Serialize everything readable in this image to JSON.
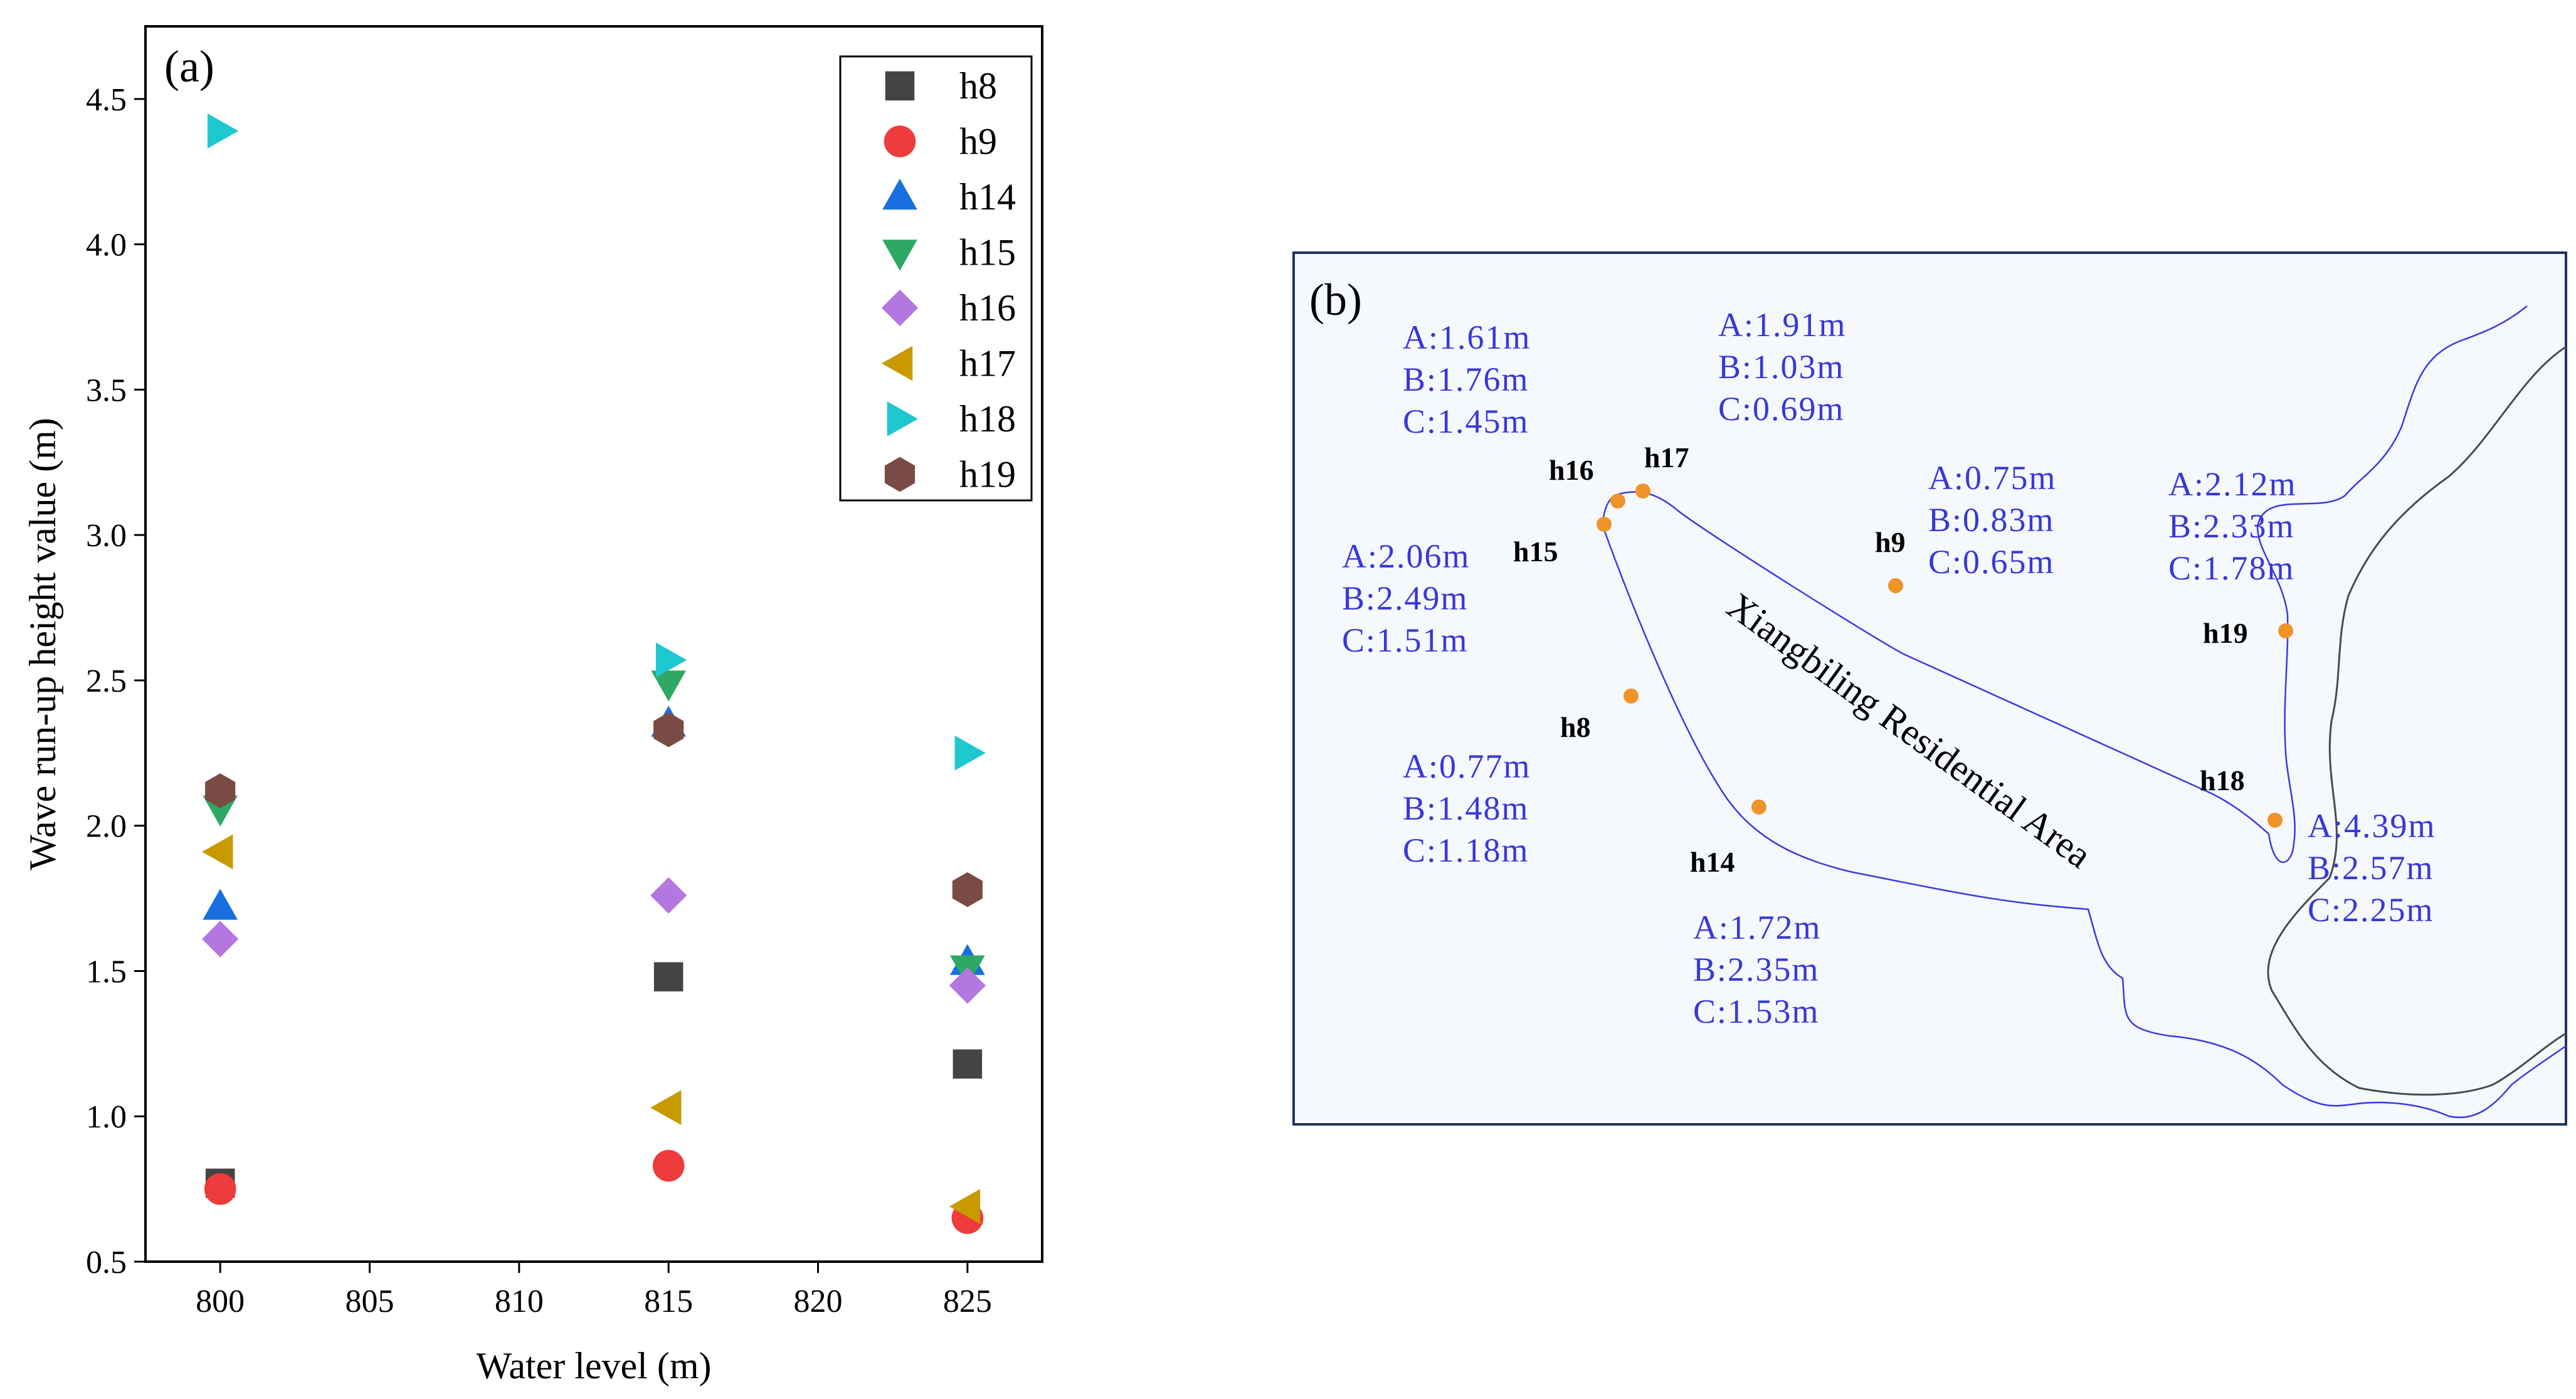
{
  "chart_data": [
    {
      "type": "scatter",
      "panel_label": "(a)",
      "title": "",
      "xlabel": "Water level (m)",
      "ylabel": "Wave run-up height value (m)",
      "xlim": [
        797.5,
        827.5
      ],
      "ylim": [
        0.5,
        4.75
      ],
      "x_ticks": [
        800,
        805,
        810,
        815,
        820,
        825
      ],
      "y_ticks": [
        0.5,
        1.0,
        1.5,
        2.0,
        2.5,
        3.0,
        3.5,
        4.0,
        4.5
      ],
      "x_tick_labels": [
        "800",
        "805",
        "810",
        "815",
        "820",
        "825"
      ],
      "y_tick_labels": [
        "0.5",
        "1.0",
        "1.5",
        "2.0",
        "2.5",
        "3.0",
        "3.5",
        "4.0",
        "4.5"
      ],
      "legend_position": "top-right",
      "x": [
        800,
        815,
        825
      ],
      "series": [
        {
          "name": "h8",
          "marker": "square",
          "color": "#444444",
          "values": [
            0.77,
            1.48,
            1.18
          ]
        },
        {
          "name": "h9",
          "marker": "circle",
          "color": "#ee3b3b",
          "values": [
            0.75,
            0.83,
            0.65
          ]
        },
        {
          "name": "h14",
          "marker": "triangle-up",
          "color": "#1a6fe0",
          "values": [
            1.72,
            2.35,
            1.53
          ]
        },
        {
          "name": "h15",
          "marker": "triangle-down",
          "color": "#2ea862",
          "values": [
            2.06,
            2.49,
            1.51
          ]
        },
        {
          "name": "h16",
          "marker": "diamond",
          "color": "#b476e0",
          "values": [
            1.61,
            1.76,
            1.45
          ]
        },
        {
          "name": "h17",
          "marker": "triangle-left",
          "color": "#c99a00",
          "values": [
            1.91,
            1.03,
            0.69
          ]
        },
        {
          "name": "h18",
          "marker": "triangle-right",
          "color": "#1ec8cf",
          "values": [
            4.39,
            2.57,
            2.25
          ]
        },
        {
          "name": "h19",
          "marker": "hexagon",
          "color": "#7a4b44",
          "values": [
            2.12,
            2.33,
            1.78
          ]
        }
      ]
    }
  ],
  "map": {
    "panel_label": "(b)",
    "area_label": "Xiangbiling Residential Area",
    "point_color": "#f0932b",
    "text_color": "#3838d8",
    "points": [
      {
        "id": "h8",
        "label": "h8",
        "values": [
          "A:0.77m",
          "B:1.48m",
          "C:1.18m"
        ]
      },
      {
        "id": "h9",
        "label": "h9",
        "values": [
          "A:0.75m",
          "B:0.83m",
          "C:0.65m"
        ]
      },
      {
        "id": "h14",
        "label": "h14",
        "values": [
          "A:1.72m",
          "B:2.35m",
          "C:1.53m"
        ]
      },
      {
        "id": "h15",
        "label": "h15",
        "values": [
          "A:2.06m",
          "B:2.49m",
          "C:1.51m"
        ]
      },
      {
        "id": "h16",
        "label": "h16",
        "values": [
          "A:1.61m",
          "B:1.76m",
          "C:1.45m"
        ]
      },
      {
        "id": "h17",
        "label": "h17",
        "values": [
          "A:1.91m",
          "B:1.03m",
          "C:0.69m"
        ]
      },
      {
        "id": "h18",
        "label": "h18",
        "values": [
          "A:4.39m",
          "B:2.57m",
          "C:2.25m"
        ]
      },
      {
        "id": "h19",
        "label": "h19",
        "values": [
          "A:2.12m",
          "B:2.33m",
          "C:1.78m"
        ]
      }
    ]
  }
}
